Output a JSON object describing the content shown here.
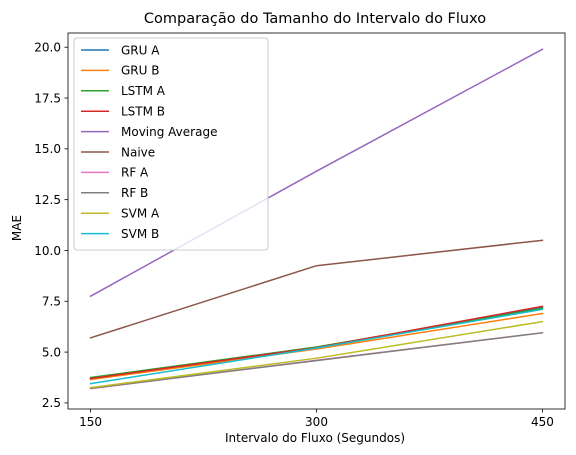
{
  "chart_data": {
    "type": "line",
    "title": "Comparação do Tamanho do Intervalo do Fluxo",
    "xlabel": "Intervalo do Fluxo (Segundos)",
    "ylabel": "MAE",
    "x": [
      150,
      300,
      450
    ],
    "x_tick_labels": [
      "150",
      "300",
      "450"
    ],
    "y_ticks": [
      2.5,
      5.0,
      7.5,
      10.0,
      12.5,
      15.0,
      17.5,
      20.0
    ],
    "y_tick_labels": [
      "2.5",
      "5.0",
      "7.5",
      "10.0",
      "12.5",
      "15.0",
      "17.5",
      "20.0"
    ],
    "xlim": [
      135,
      465
    ],
    "ylim": [
      2.2,
      20.7
    ],
    "grid": false,
    "legend_position": "top-left",
    "series": [
      {
        "name": "GRU A",
        "color": "#1f77b4",
        "values": [
          3.7,
          5.2,
          7.2
        ]
      },
      {
        "name": "GRU B",
        "color": "#ff7f0e",
        "values": [
          3.65,
          5.15,
          6.9
        ]
      },
      {
        "name": "LSTM A",
        "color": "#2ca02c",
        "values": [
          3.75,
          5.25,
          7.15
        ]
      },
      {
        "name": "LSTM B",
        "color": "#d62728",
        "values": [
          3.7,
          5.22,
          7.25
        ]
      },
      {
        "name": "Moving Average",
        "color": "#9467bd",
        "values": [
          7.75,
          13.9,
          19.9
        ]
      },
      {
        "name": "Naive",
        "color": "#8c564b",
        "values": [
          5.7,
          9.25,
          10.5
        ]
      },
      {
        "name": "RF A",
        "color": "#e377c2",
        "values": [
          3.2,
          4.6,
          5.95
        ]
      },
      {
        "name": "RF B",
        "color": "#7f7f7f",
        "values": [
          3.22,
          4.58,
          5.95
        ]
      },
      {
        "name": "SVM A",
        "color": "#bcbd22",
        "values": [
          3.25,
          4.7,
          6.5
        ]
      },
      {
        "name": "SVM B",
        "color": "#17becf",
        "values": [
          3.45,
          5.2,
          7.1
        ]
      }
    ]
  }
}
